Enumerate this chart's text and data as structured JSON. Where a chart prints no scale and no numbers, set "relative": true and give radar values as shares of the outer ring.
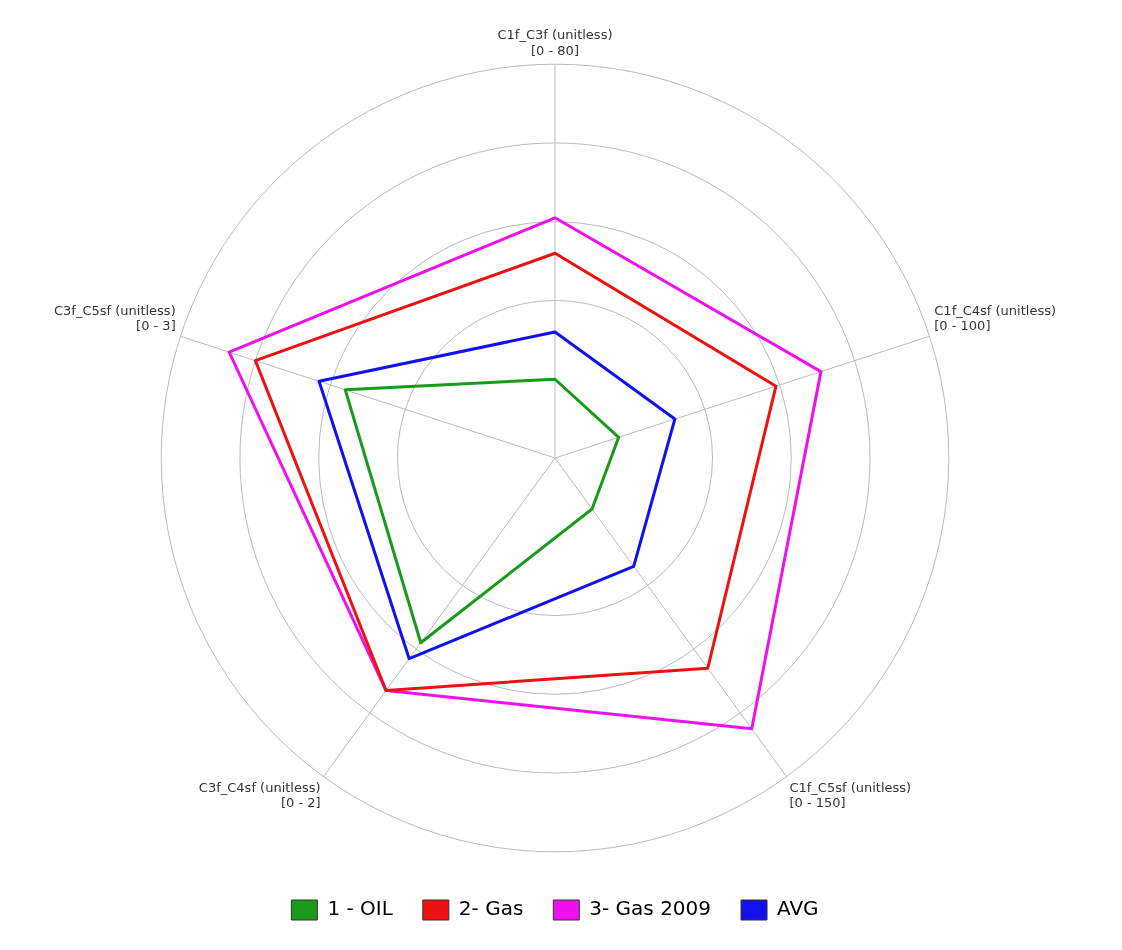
{
  "chart_data": {
    "type": "radar",
    "relative": true,
    "grid": true,
    "legend": "bottom",
    "marker": "none",
    "categories": [
      "C1f_C3f (unitless)\n[0 - 80]",
      "C1f_C4sf (unitless)\n[0 - 100]",
      "C1f_C5sf (unitless)\n[0 - 150]",
      "C3f_C4sf (unitless)\n[0 - 2]",
      "C3f_C5sf (unitless)\n[0 - 3]"
    ],
    "series": [
      {
        "name": "1 - OIL",
        "color": "#1a9a1a",
        "values": [
          0.2,
          0.17,
          0.16,
          0.58,
          0.56
        ]
      },
      {
        "name": "2- Gas",
        "color": "#ee1111",
        "values": [
          0.52,
          0.59,
          0.66,
          0.73,
          0.8
        ]
      },
      {
        "name": "3- Gas 2009",
        "color": "#ee11ee",
        "values": [
          0.61,
          0.71,
          0.85,
          0.73,
          0.87
        ]
      },
      {
        "name": "AVG",
        "color": "#1111ee",
        "values": [
          0.32,
          0.32,
          0.34,
          0.63,
          0.63
        ]
      }
    ]
  }
}
